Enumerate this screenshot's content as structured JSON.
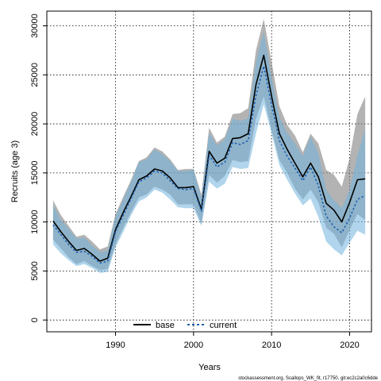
{
  "chart_data": {
    "type": "line",
    "xlabel": "Years",
    "ylabel": "Recruits (age 3)",
    "xlim": [
      1981.2,
      2022.8
    ],
    "ylim": [
      -1200,
      31500
    ],
    "xticks": [
      1990,
      2000,
      2010,
      2020
    ],
    "yticks": [
      0,
      5000,
      10000,
      15000,
      20000,
      25000,
      30000
    ],
    "grid": true,
    "legend_position": "bottom-center",
    "x": [
      1982,
      1983,
      1984,
      1985,
      1986,
      1987,
      1988,
      1989,
      1990,
      1991,
      1992,
      1993,
      1994,
      1995,
      1996,
      1997,
      1998,
      1999,
      2000,
      2001,
      2002,
      2003,
      2004,
      2005,
      2006,
      2007,
      2008,
      2009,
      2010,
      2011,
      2012,
      2013,
      2014,
      2015,
      2016,
      2017,
      2018,
      2019,
      2020,
      2021,
      2022
    ],
    "series": [
      {
        "name": "base",
        "color": "#000000",
        "band_color": "#808080",
        "values": [
          10100,
          9000,
          8000,
          7100,
          7300,
          6700,
          6000,
          6300,
          9200,
          11000,
          12600,
          14300,
          14700,
          15400,
          15200,
          14500,
          13500,
          13500,
          13600,
          11300,
          17200,
          16000,
          16500,
          18500,
          18600,
          19000,
          24000,
          27000,
          22800,
          19000,
          17400,
          16000,
          14600,
          16000,
          14600,
          11900,
          11200,
          10000,
          12000,
          14300,
          14400
        ],
        "lower": [
          8200,
          7300,
          6400,
          5700,
          6000,
          5500,
          5100,
          5200,
          7700,
          9400,
          11000,
          12500,
          12800,
          13600,
          13300,
          12800,
          11800,
          11800,
          11800,
          9800,
          14800,
          14000,
          14700,
          16300,
          16100,
          16200,
          20500,
          22800,
          19400,
          16300,
          15000,
          13400,
          12300,
          13300,
          12000,
          9400,
          8800,
          7400,
          9200,
          10800,
          10200
        ],
        "upper": [
          12200,
          10700,
          9600,
          8500,
          8700,
          8000,
          7200,
          7500,
          10800,
          12600,
          14300,
          16200,
          16600,
          17600,
          17200,
          16400,
          15300,
          15400,
          15400,
          12800,
          19600,
          18100,
          18700,
          21000,
          21100,
          21600,
          27500,
          30700,
          26300,
          21800,
          19900,
          18800,
          17100,
          19000,
          18000,
          15300,
          14800,
          13600,
          16500,
          21000,
          22800
        ]
      },
      {
        "name": "current",
        "color": "#1f5fb0",
        "band_color": "#6fb3dc",
        "values": [
          9700,
          8700,
          7700,
          6900,
          7000,
          6500,
          5800,
          6000,
          9000,
          10700,
          12400,
          14100,
          14500,
          15200,
          15000,
          14200,
          13400,
          13300,
          13400,
          11100,
          16800,
          15600,
          16100,
          18100,
          17900,
          18300,
          22900,
          25900,
          21900,
          18300,
          16700,
          15500,
          14200,
          15600,
          13700,
          10600,
          9500,
          8900,
          10400,
          12300,
          12700
        ],
        "lower": [
          7700,
          6800,
          6100,
          5500,
          5700,
          5300,
          4800,
          4900,
          7400,
          9000,
          10700,
          12100,
          12500,
          13300,
          13000,
          12300,
          11500,
          11400,
          11400,
          9600,
          14100,
          13400,
          13900,
          15600,
          15400,
          15500,
          19000,
          22000,
          19000,
          15800,
          14300,
          12900,
          11700,
          12400,
          10500,
          8000,
          7200,
          6600,
          7900,
          9100,
          8700
        ],
        "upper": [
          11700,
          10200,
          9300,
          8300,
          8400,
          7600,
          6900,
          7100,
          10600,
          12300,
          14100,
          16100,
          16400,
          17400,
          16900,
          16200,
          15200,
          15200,
          15300,
          12500,
          19100,
          17800,
          18400,
          20500,
          20300,
          20600,
          26300,
          29400,
          24700,
          20700,
          19100,
          18000,
          16700,
          18700,
          17000,
          13300,
          12200,
          11400,
          13300,
          16800,
          19500
        ]
      }
    ]
  },
  "footer": {
    "text": "stockassessment.org, Scallops_WK_fit, r17750, git:ec2c2a0c6dde"
  }
}
